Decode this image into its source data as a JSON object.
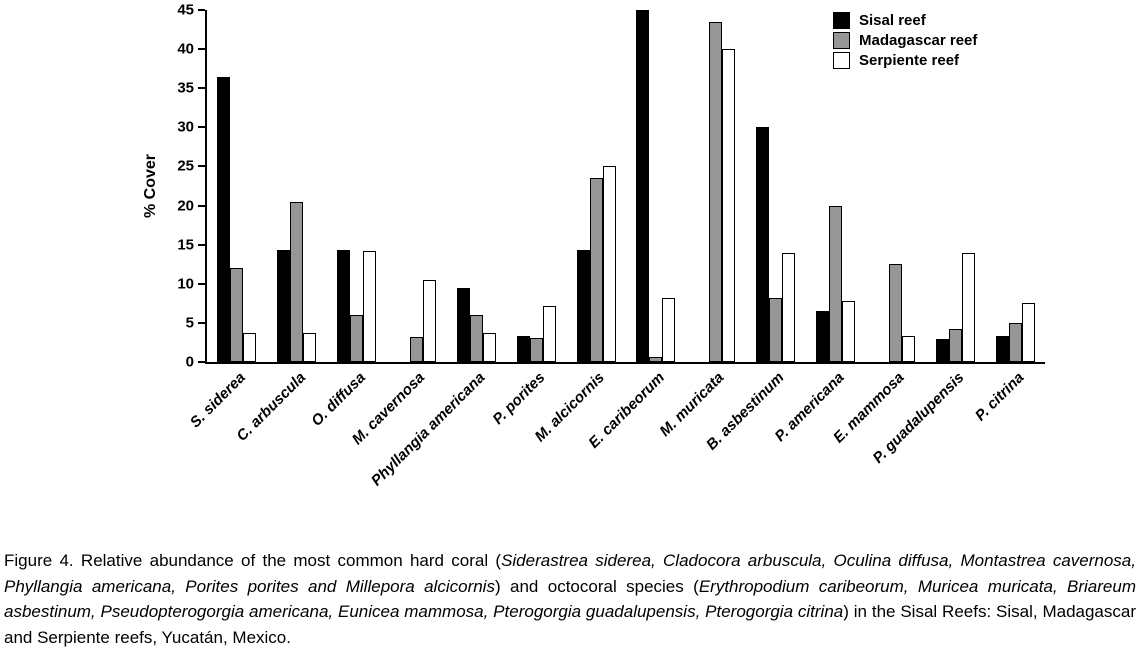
{
  "figure": {
    "caption_segments": [
      {
        "text": "Figure 4. Relative abundance of the most common hard coral (",
        "italic": false
      },
      {
        "text": "Siderastrea siderea, Cladocora arbuscula, Oculina diffusa, Montastrea cavernosa, Phyllangia americana, Porites porites and Millepora alcicornis",
        "italic": true
      },
      {
        "text": ") and octocoral species (",
        "italic": false
      },
      {
        "text": "Erythropodium caribeorum, Muricea muricata, Briareum asbestinum, Pseudopterogorgia americana, Eunicea mammosa, Pterogorgia guadalupensis, Pterogorgia citrina",
        "italic": true
      },
      {
        "text": ") in the Sisal Reefs: Sisal, Madagascar and Serpiente reefs, Yucatán, Mexico.",
        "italic": false
      }
    ]
  },
  "chart_data": {
    "type": "bar",
    "title": "",
    "xlabel": "",
    "ylabel": "% Cover",
    "ylim": [
      0,
      45
    ],
    "ytick_step": 5,
    "grid": false,
    "legend_position": "top-right",
    "categories": [
      "S. siderea",
      "C. arbuscula",
      "O. diffusa",
      "M. cavernosa",
      "Phyllangia americana",
      "P. porites",
      "M. alcicornis",
      "E. caribeorum",
      "M. muricata",
      "B. asbestinum",
      "P. americana",
      "E. mammosa",
      "P. guadalupensis",
      "P. citrina"
    ],
    "series": [
      {
        "name": "Sisal reef",
        "color": "#000000",
        "values": [
          36.5,
          14.3,
          14.3,
          0,
          9.5,
          3.3,
          14.3,
          45,
          0,
          30,
          6.5,
          0,
          3,
          3.3
        ]
      },
      {
        "name": "Madagascar reef",
        "color": "#969696",
        "values": [
          12,
          20.5,
          6,
          3.2,
          6,
          3.1,
          23.5,
          0.6,
          43.5,
          8.2,
          20,
          12.5,
          4.2,
          5
        ]
      },
      {
        "name": "Serpiente reef",
        "color": "#ffffff",
        "values": [
          3.7,
          3.7,
          14.2,
          10.5,
          3.7,
          7.2,
          25,
          8.2,
          40,
          14,
          7.8,
          3.3,
          14,
          7.5
        ]
      }
    ]
  }
}
